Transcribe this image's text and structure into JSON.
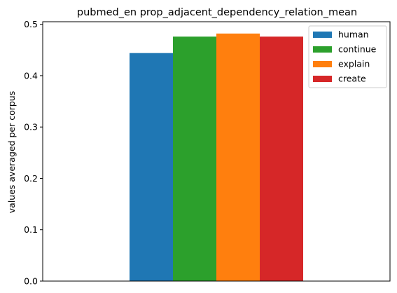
{
  "chart_data": {
    "type": "bar",
    "title": "pubmed_en prop_adjacent_dependency_relation_mean",
    "xlabel": "",
    "ylabel": "values averaged per corpus",
    "ylim": [
      0,
      0.505
    ],
    "yticks": [
      "0.0",
      "0.1",
      "0.2",
      "0.3",
      "0.4",
      "0.5"
    ],
    "categories": [
      ""
    ],
    "grid": false,
    "legend": "upper right",
    "series": [
      {
        "name": "human",
        "values": [
          0.444
        ],
        "color": "#1f77b4"
      },
      {
        "name": "continue",
        "values": [
          0.476
        ],
        "color": "#2ca02c"
      },
      {
        "name": "explain",
        "values": [
          0.482
        ],
        "color": "#ff7f0e"
      },
      {
        "name": "create",
        "values": [
          0.476
        ],
        "color": "#d62728"
      }
    ]
  }
}
